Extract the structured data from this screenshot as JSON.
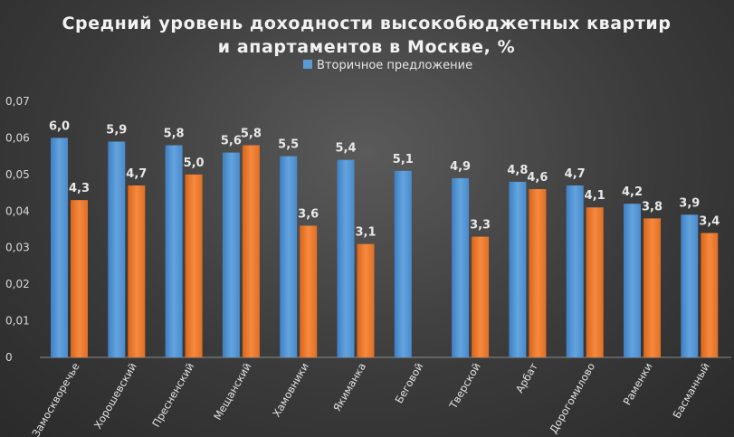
{
  "chart_data": {
    "type": "bar",
    "title_lines": [
      "Средний уровень доходности высокобюджетных квартир",
      "и апартаментов в Москве, %"
    ],
    "legend": {
      "placement": "top-center",
      "entries": [
        {
          "label": "Вторичное предложение",
          "color": "#5b9bd5"
        }
      ]
    },
    "ylim": [
      0,
      0.07
    ],
    "ytick_labels": [
      "0",
      "0,01",
      "0,02",
      "0,03",
      "0,04",
      "0,05",
      "0,06",
      "0,07"
    ],
    "grid": false,
    "categories": [
      "Замоскворечье",
      "Хорошевский",
      "Пресненский",
      "Мещанский",
      "Хамовники",
      "Якиманка",
      "Беговой",
      "Тверской",
      "Арбат",
      "Дорогомилово",
      "Раменки",
      "Басманный"
    ],
    "series": [
      {
        "name": "Вторичное предложение",
        "color": "#5b9bd5",
        "values": [
          0.06,
          0.059,
          0.058,
          0.056,
          0.055,
          0.054,
          0.051,
          0.049,
          0.048,
          0.047,
          0.042,
          0.039
        ],
        "labels": [
          "6,0",
          "5,9",
          "5,8",
          "5,6",
          "5,5",
          "5,4",
          "5,1",
          "4,9",
          "4,8",
          "4,7",
          "4,2",
          "3,9"
        ]
      },
      {
        "color": "#ed7d31",
        "values": [
          0.043,
          0.047,
          0.05,
          0.058,
          0.036,
          0.031,
          null,
          0.033,
          0.046,
          0.041,
          0.038,
          0.034
        ],
        "labels": [
          "4,3",
          "4,7",
          "5,0",
          "5,8",
          "3,6",
          "3,1",
          null,
          "3,3",
          "4,6",
          "4,1",
          "3,8",
          "3,4"
        ]
      }
    ]
  }
}
